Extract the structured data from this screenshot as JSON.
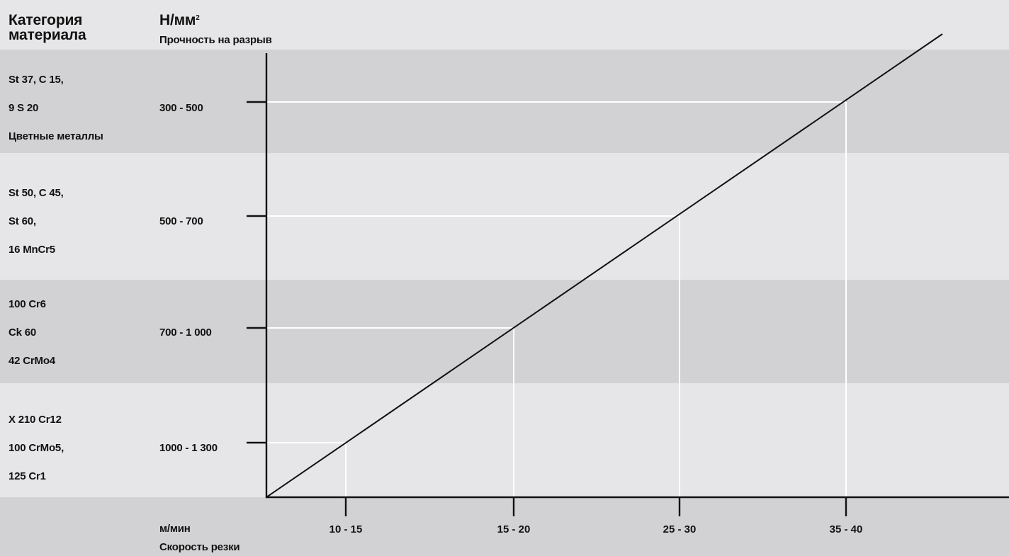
{
  "header": {
    "material_category": [
      "Категория",
      "материала"
    ],
    "unit_y": "Н/мм",
    "unit_y_sup": "2",
    "y_label": "Прочность на разрыв"
  },
  "rows": [
    {
      "materials": [
        "St 37, C 15,",
        "9 S 20",
        "Цветные металлы"
      ],
      "strength": "300 - 500",
      "speed": "35 - 40",
      "shade": "#d2d2d4"
    },
    {
      "materials": [
        "St 50, C 45,",
        "St 60,",
        "16 MnCr5"
      ],
      "strength": "500 - 700",
      "speed": "25 - 30",
      "shade": "#e6e6e8"
    },
    {
      "materials": [
        "100 Cr6",
        "Ck 60",
        "42 CrMo4"
      ],
      "strength": "700 - 1 000",
      "speed": "15 - 20",
      "shade": "#d2d2d4"
    },
    {
      "materials": [
        "X 210 Cr12",
        "100 CrMo5,",
        "125 Cr1"
      ],
      "strength": "1000 - 1 300",
      "speed": "10 - 15",
      "shade": "#e6e6e8"
    }
  ],
  "footer": {
    "unit_x": "м/мин",
    "x_label": "Скорость резки"
  },
  "chart_data": {
    "type": "line",
    "title": "",
    "ylabel": "Н/мм2 Прочность на разрыв",
    "xlabel": "м/мин Скорость резки",
    "categories_y": [
      "300 - 500",
      "500 - 700",
      "700 - 1 000",
      "1000 - 1 300"
    ],
    "categories_x": [
      "10 - 15",
      "15 - 20",
      "25 - 30",
      "35 - 40"
    ],
    "series": [
      {
        "values": [
          [
            "10 - 15",
            "1000 - 1 300"
          ],
          [
            "15 - 20",
            "700 - 1 000"
          ],
          [
            "25 - 30",
            "500 - 700"
          ],
          [
            "35 - 40",
            "300 - 500"
          ]
        ]
      }
    ],
    "grid": false,
    "colors": {
      "background": "#e6e6e8",
      "band": "#d2d2d4",
      "line": "#111111",
      "guides": "#ffffff"
    }
  }
}
